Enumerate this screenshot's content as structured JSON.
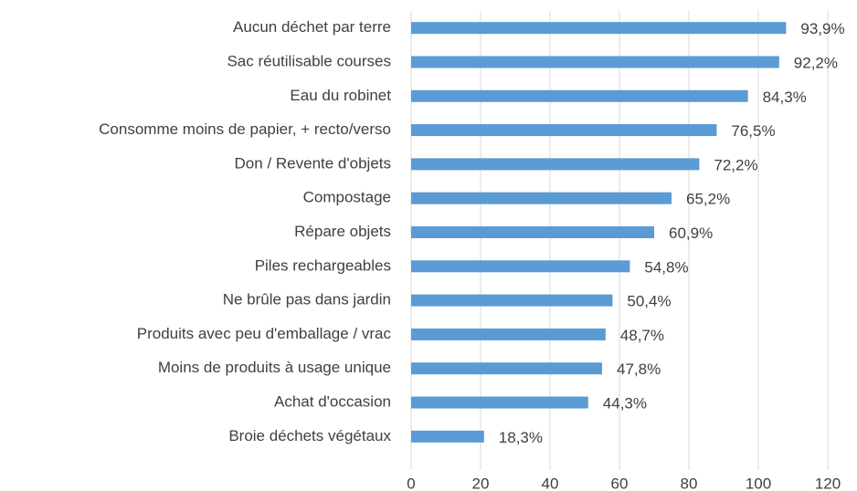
{
  "chart_data": {
    "type": "bar",
    "orientation": "horizontal",
    "categories": [
      "Aucun déchet par terre",
      "Sac réutilisable courses",
      "Eau du robinet",
      "Consomme moins de papier, + recto/verso",
      "Don / Revente d'objets",
      "Compostage",
      "Répare objets",
      "Piles rechargeables",
      "Ne brûle pas dans jardin",
      "Produits avec peu d'emballage / vrac",
      "Moins de produits à usage unique",
      "Achat d'occasion",
      "Broie déchets végétaux"
    ],
    "values": [
      108,
      106,
      97,
      88,
      83,
      75,
      70,
      63,
      58,
      56,
      55,
      51,
      21
    ],
    "value_labels": [
      "93,9%",
      "92,2%",
      "84,3%",
      "76,5%",
      "72,2%",
      "65,2%",
      "60,9%",
      "54,8%",
      "50,4%",
      "48,7%",
      "47,8%",
      "44,3%",
      "18,3%"
    ],
    "color": "#5b9bd5",
    "xlim": [
      0,
      120
    ],
    "xticks": [
      0,
      20,
      40,
      60,
      80,
      100,
      120
    ],
    "grid": true
  }
}
